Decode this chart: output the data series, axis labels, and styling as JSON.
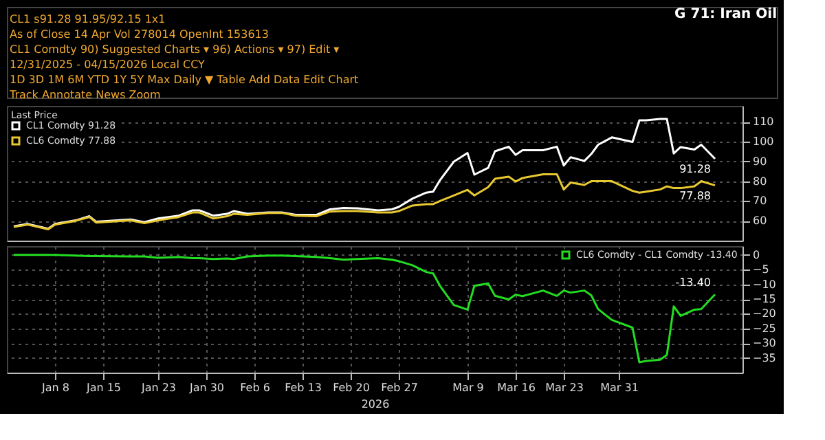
{
  "chart_data": [
    {
      "type": "line",
      "title": "G 71: Iran Oil",
      "legend_title": "Last Price",
      "annotations": [
        "CL1  s91.28      91.95/92.15      1x1",
        "As of Close 14 Apr  Vol 278014   OpenInt 153613",
        "CL1 Comdty     90) Suggested Charts ▾   96) Actions ▾   97) Edit ▾",
        "12/31/2025 - 04/15/2026   Local CCY",
        "1D  3D  1M  6M  YTD  1Y  5Y  Max  Daily ▼   Table   Add Data   Edit Chart",
        "Track   Annotate   News   Zoom",
        {
          "text": "91.28",
          "x": "2026-04-14",
          "y": 91.28
        },
        {
          "text": "77.88",
          "x": "2026-04-14",
          "y": 77.88
        }
      ],
      "x": [
        "2026-01-02",
        "2026-01-04",
        "2026-01-07",
        "2026-01-08",
        "2026-01-11",
        "2026-01-13",
        "2026-01-14",
        "2026-01-19",
        "2026-01-21",
        "2026-01-23",
        "2026-01-26",
        "2026-01-28",
        "2026-01-29",
        "2026-01-31",
        "2026-02-02",
        "2026-02-03",
        "2026-02-05",
        "2026-02-08",
        "2026-02-10",
        "2026-02-12",
        "2026-02-15",
        "2026-02-17",
        "2026-02-19",
        "2026-02-21",
        "2026-02-24",
        "2026-02-26",
        "2026-02-27",
        "2026-03-01",
        "2026-03-03",
        "2026-03-04",
        "2026-03-05",
        "2026-03-07",
        "2026-03-09",
        "2026-03-10",
        "2026-03-12",
        "2026-03-13",
        "2026-03-15",
        "2026-03-16",
        "2026-03-17",
        "2026-03-20",
        "2026-03-22",
        "2026-03-23",
        "2026-03-24",
        "2026-03-26",
        "2026-03-27",
        "2026-03-28",
        "2026-03-30",
        "2026-04-02",
        "2026-04-03",
        "2026-04-04",
        "2026-04-06",
        "2026-04-07",
        "2026-04-08",
        "2026-04-09",
        "2026-04-11",
        "2026-04-12",
        "2026-04-14"
      ],
      "series": [
        {
          "name": "CL1 Comdty 91.28",
          "color": "#ffffff",
          "values": [
            57.2,
            58.4,
            56,
            58.4,
            60.2,
            62.3,
            59.5,
            60.7,
            59.3,
            61.2,
            62.6,
            65.3,
            65.3,
            62.6,
            63.5,
            64.9,
            63.5,
            64.2,
            64.2,
            63,
            63,
            65.8,
            66.5,
            66.3,
            65.3,
            65.8,
            67,
            71.2,
            74.2,
            74.7,
            80.5,
            89.8,
            94.2,
            83.3,
            86.7,
            95.1,
            97.4,
            93.3,
            95.6,
            95.6,
            97.4,
            87.9,
            92.1,
            90.2,
            93.7,
            98.4,
            102.1,
            99.8,
            110.7,
            110.7,
            111.4,
            111.4,
            94,
            97.2,
            96,
            98.4,
            91.28
          ]
        },
        {
          "name": "CL6 Comdty 77.88",
          "color": "#e8c830",
          "values": [
            56.9,
            58.1,
            55.7,
            58.1,
            60,
            61.9,
            59.1,
            60.2,
            58.8,
            60.2,
            61.9,
            64.2,
            64.2,
            61.2,
            62.3,
            63.5,
            63,
            64,
            64,
            62.6,
            62.3,
            64.7,
            64.9,
            64.9,
            64.2,
            64.2,
            64.9,
            67.7,
            68.4,
            68.4,
            70,
            72.8,
            75.6,
            72.8,
            77,
            81.2,
            82.3,
            79.8,
            81.6,
            83.5,
            83.5,
            75.8,
            79.3,
            78.1,
            80,
            80,
            80,
            75.1,
            74.2,
            74.7,
            75.8,
            77.4,
            76.5,
            76.5,
            77.4,
            80,
            77.88
          ]
        }
      ],
      "xlim": [
        "2026-01-01",
        "2026-04-18"
      ],
      "ylim": [
        50,
        118
      ],
      "yticks": [
        60,
        70,
        80,
        90,
        100,
        110
      ],
      "grid": true,
      "legend": "top left",
      "tick_labels": "y"
    },
    {
      "type": "line",
      "xlabel": "2026",
      "annotations": [
        {
          "text": "-13.40",
          "x": "2026-04-14",
          "y": -13.4
        }
      ],
      "x": [
        "2026-01-02",
        "2026-01-04",
        "2026-01-07",
        "2026-01-08",
        "2026-01-11",
        "2026-01-13",
        "2026-01-14",
        "2026-01-19",
        "2026-01-21",
        "2026-01-23",
        "2026-01-26",
        "2026-01-28",
        "2026-01-29",
        "2026-01-31",
        "2026-02-02",
        "2026-02-03",
        "2026-02-05",
        "2026-02-08",
        "2026-02-10",
        "2026-02-12",
        "2026-02-15",
        "2026-02-17",
        "2026-02-19",
        "2026-02-21",
        "2026-02-24",
        "2026-02-26",
        "2026-02-27",
        "2026-03-01",
        "2026-03-03",
        "2026-03-04",
        "2026-03-05",
        "2026-03-07",
        "2026-03-09",
        "2026-03-10",
        "2026-03-12",
        "2026-03-13",
        "2026-03-15",
        "2026-03-16",
        "2026-03-17",
        "2026-03-20",
        "2026-03-22",
        "2026-03-23",
        "2026-03-24",
        "2026-03-26",
        "2026-03-27",
        "2026-03-28",
        "2026-03-30",
        "2026-04-02",
        "2026-04-03",
        "2026-04-04",
        "2026-04-06",
        "2026-04-07",
        "2026-04-08",
        "2026-04-09",
        "2026-04-11",
        "2026-04-12",
        "2026-04-14"
      ],
      "series": [
        {
          "name": "CL6 Comdty - CL1 Comdty -13.40",
          "color": "#22dd22",
          "values": [
            0,
            0,
            0,
            0,
            -0.2,
            -0.4,
            -0.4,
            -0.5,
            -0.5,
            -1,
            -0.7,
            -1.1,
            -1.1,
            -1.4,
            -1.2,
            -1.4,
            -0.5,
            -0.2,
            -0.2,
            -0.4,
            -0.7,
            -1.1,
            -1.6,
            -1.4,
            -1.1,
            -1.6,
            -2.1,
            -3.5,
            -5.8,
            -6.3,
            -10.5,
            -17,
            -18.6,
            -10.5,
            -9.7,
            -13.9,
            -15.1,
            -13.5,
            -14,
            -12.1,
            -13.9,
            -12.1,
            -12.8,
            -12.1,
            -13.7,
            -18.4,
            -22.1,
            -24.7,
            -36.5,
            -36,
            -35.6,
            -34,
            -17.5,
            -20.7,
            -18.6,
            -18.4,
            -13.4
          ]
        }
      ],
      "xlim": [
        "2026-01-01",
        "2026-04-18"
      ],
      "xticks": [
        {
          "value": "2026-01-08",
          "label": "Jan 8"
        },
        {
          "value": "2026-01-15",
          "label": "Jan 15"
        },
        {
          "value": "2026-01-23",
          "label": "Jan 23"
        },
        {
          "value": "2026-01-30",
          "label": "Jan 30"
        },
        {
          "value": "2026-02-06",
          "label": "Feb 6"
        },
        {
          "value": "2026-02-13",
          "label": "Feb 13"
        },
        {
          "value": "2026-02-20",
          "label": "Feb 20"
        },
        {
          "value": "2026-02-27",
          "label": "Feb 27"
        },
        {
          "value": "2026-03-09",
          "label": "Mar 9"
        },
        {
          "value": "2026-03-16",
          "label": "Mar 16"
        },
        {
          "value": "2026-03-23",
          "label": "Mar 23"
        },
        {
          "value": "2026-03-31",
          "label": "Mar 31"
        }
      ],
      "ylim": [
        -40,
        3
      ],
      "yticks": [
        0,
        -5,
        -10,
        -15,
        -20,
        -25,
        -30,
        -35
      ],
      "grid": true,
      "legend": "top right"
    }
  ]
}
